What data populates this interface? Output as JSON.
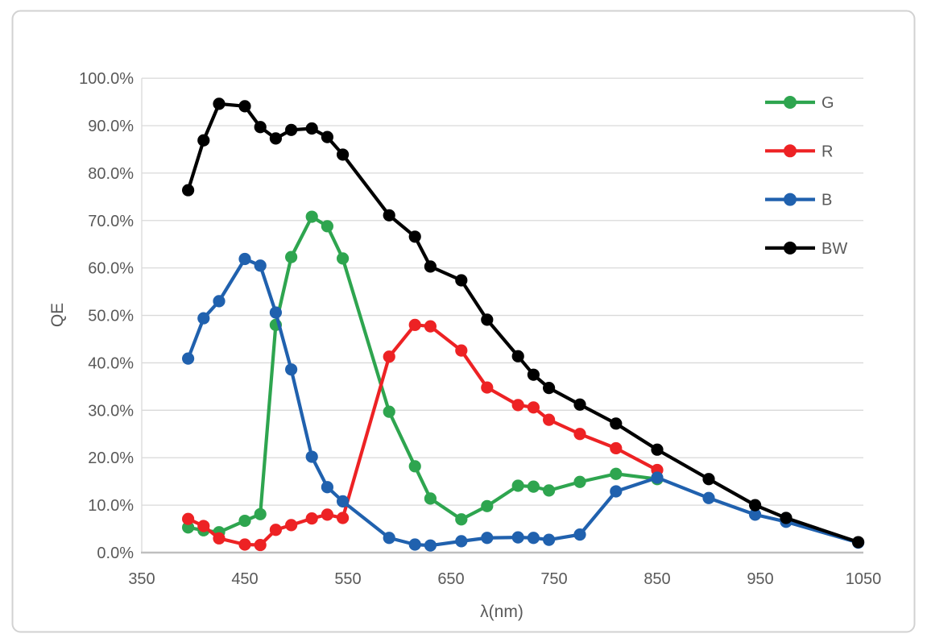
{
  "figure": {
    "title": "",
    "border_color": "#D2D2D2"
  },
  "chart_data": {
    "type": "line",
    "title": "",
    "xlabel": "λ(nm)",
    "ylabel": "QE",
    "xlim": [
      350,
      1050
    ],
    "ylim": [
      0,
      100
    ],
    "x_ticks": [
      350,
      450,
      550,
      650,
      750,
      850,
      950,
      1050
    ],
    "y_ticks": [
      0,
      10,
      20,
      30,
      40,
      50,
      60,
      70,
      80,
      90,
      100
    ],
    "y_tick_labels": [
      "0.0%",
      "10.0%",
      "20.0%",
      "30.0%",
      "40.0%",
      "50.0%",
      "60.0%",
      "70.0%",
      "80.0%",
      "90.0%",
      "100.0%"
    ],
    "grid": "horizontal",
    "legend_position": "inside-top-right",
    "colors": {
      "gridline": "#D9D9D9",
      "axis_line": "#BFBFBF",
      "axis_text": "#595959"
    },
    "series": [
      {
        "name": "G",
        "color": "#2EA54F",
        "points": [
          [
            395,
            5.3
          ],
          [
            410,
            4.7
          ],
          [
            425,
            4.3
          ],
          [
            450,
            6.7
          ],
          [
            465,
            8.1
          ],
          [
            480,
            48.0
          ],
          [
            495,
            62.3
          ],
          [
            515,
            70.8
          ],
          [
            530,
            68.8
          ],
          [
            545,
            62.0
          ],
          [
            590,
            29.7
          ],
          [
            615,
            18.2
          ],
          [
            630,
            11.4
          ],
          [
            660,
            7.0
          ],
          [
            685,
            9.8
          ],
          [
            715,
            14.1
          ],
          [
            730,
            13.9
          ],
          [
            745,
            13.1
          ],
          [
            775,
            14.9
          ],
          [
            810,
            16.6
          ],
          [
            850,
            15.5
          ]
        ]
      },
      {
        "name": "R",
        "color": "#ED2224",
        "points": [
          [
            395,
            7.1
          ],
          [
            410,
            5.6
          ],
          [
            425,
            3.0
          ],
          [
            450,
            1.7
          ],
          [
            465,
            1.6
          ],
          [
            480,
            4.8
          ],
          [
            495,
            5.8
          ],
          [
            515,
            7.2
          ],
          [
            530,
            8.0
          ],
          [
            545,
            7.3
          ],
          [
            590,
            41.3
          ],
          [
            615,
            48.0
          ],
          [
            630,
            47.7
          ],
          [
            660,
            42.6
          ],
          [
            685,
            34.8
          ],
          [
            715,
            31.1
          ],
          [
            730,
            30.6
          ],
          [
            745,
            28.0
          ],
          [
            775,
            25.0
          ],
          [
            810,
            22.0
          ],
          [
            850,
            17.4
          ]
        ]
      },
      {
        "name": "B",
        "color": "#2061AE",
        "points": [
          [
            395,
            40.9
          ],
          [
            410,
            49.4
          ],
          [
            425,
            53.0
          ],
          [
            450,
            61.9
          ],
          [
            465,
            60.5
          ],
          [
            480,
            50.6
          ],
          [
            495,
            38.6
          ],
          [
            515,
            20.2
          ],
          [
            530,
            13.8
          ],
          [
            545,
            10.8
          ],
          [
            590,
            3.1
          ],
          [
            615,
            1.7
          ],
          [
            630,
            1.5
          ],
          [
            660,
            2.4
          ],
          [
            685,
            3.1
          ],
          [
            715,
            3.2
          ],
          [
            730,
            3.1
          ],
          [
            745,
            2.7
          ],
          [
            775,
            3.8
          ],
          [
            810,
            12.9
          ],
          [
            850,
            15.8
          ],
          [
            900,
            11.5
          ],
          [
            945,
            8.0
          ],
          [
            975,
            6.5
          ],
          [
            1045,
            2.1
          ]
        ]
      },
      {
        "name": "BW",
        "color": "#000000",
        "points": [
          [
            395,
            76.4
          ],
          [
            410,
            86.9
          ],
          [
            425,
            94.6
          ],
          [
            450,
            94.1
          ],
          [
            465,
            89.7
          ],
          [
            480,
            87.3
          ],
          [
            495,
            89.1
          ],
          [
            515,
            89.4
          ],
          [
            530,
            87.6
          ],
          [
            545,
            83.9
          ],
          [
            590,
            71.1
          ],
          [
            615,
            66.6
          ],
          [
            630,
            60.3
          ],
          [
            660,
            57.4
          ],
          [
            685,
            49.1
          ],
          [
            715,
            41.4
          ],
          [
            730,
            37.5
          ],
          [
            745,
            34.7
          ],
          [
            775,
            31.2
          ],
          [
            810,
            27.2
          ],
          [
            850,
            21.7
          ],
          [
            900,
            15.5
          ],
          [
            945,
            10.0
          ],
          [
            975,
            7.3
          ],
          [
            1045,
            2.2
          ]
        ]
      }
    ]
  }
}
